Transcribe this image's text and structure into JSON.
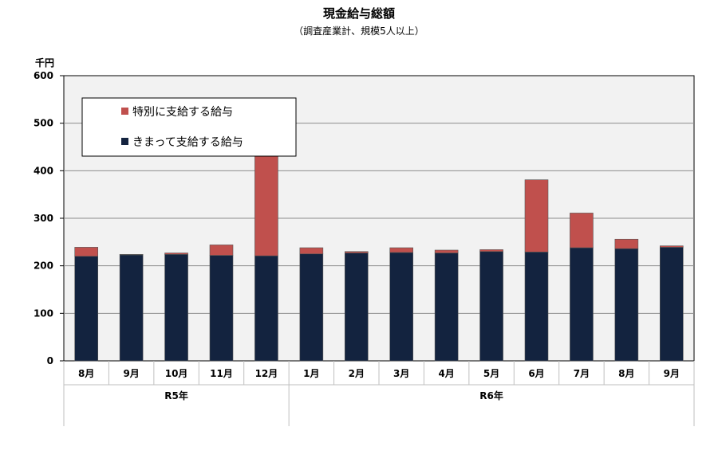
{
  "chart_data": {
    "type": "bar",
    "stacked": true,
    "title": "現金給与総額",
    "subtitle": "（調査産業計、規模5人以上）",
    "ylabel": "千円",
    "ylim": [
      0,
      600
    ],
    "yticks": [
      "0",
      "100",
      "200",
      "300",
      "400",
      "500",
      "600"
    ],
    "grid": true,
    "legend_position": "top-left",
    "categories": [
      "8月",
      "9月",
      "10月",
      "11月",
      "12月",
      "1月",
      "2月",
      "3月",
      "4月",
      "5月",
      "6月",
      "7月",
      "8月",
      "9月"
    ],
    "groups": [
      {
        "label": "R5年",
        "count": 5
      },
      {
        "label": "R6年",
        "count": 9
      }
    ],
    "series": [
      {
        "name": "きまって支給する給与",
        "color": "#13233f",
        "values": [
          220,
          223,
          224,
          222,
          221,
          225,
          227,
          228,
          227,
          230,
          229,
          238,
          236,
          239
        ]
      },
      {
        "name": "特別に支給する給与",
        "color": "#c0504d",
        "values": [
          19,
          1,
          3,
          22,
          213,
          13,
          3,
          10,
          6,
          4,
          152,
          73,
          20,
          3
        ]
      }
    ]
  }
}
